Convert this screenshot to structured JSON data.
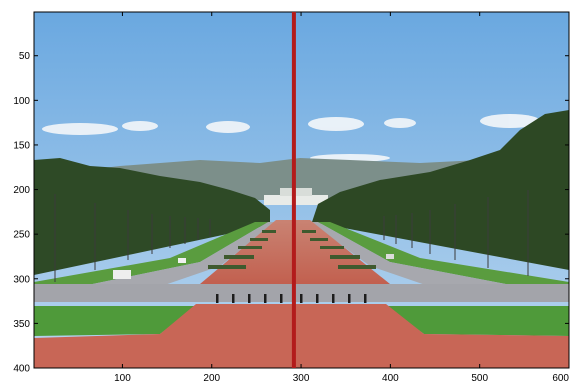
{
  "axes": {
    "x_range": [
      1,
      600
    ],
    "y_range": [
      1,
      400
    ],
    "x_ticks": [
      100,
      200,
      300,
      400,
      500,
      600
    ],
    "y_ticks": [
      50,
      100,
      150,
      200,
      250,
      300,
      350,
      400
    ],
    "x_tick_labels": [
      "100",
      "200",
      "300",
      "400",
      "500",
      "600"
    ],
    "y_tick_labels": [
      "50",
      "100",
      "150",
      "200",
      "250",
      "300",
      "350",
      "400"
    ],
    "y_direction": "reversed"
  },
  "overlay": {
    "vertical_line_x": 292,
    "line_color": "#b31b1b"
  },
  "scene": {
    "sky_color": "#7eb6e6",
    "tree_color": "#2d4a24",
    "grass_color": "#4f9a3a",
    "plaza_color": "#c86a5a",
    "road_color": "#a9a9b0"
  }
}
